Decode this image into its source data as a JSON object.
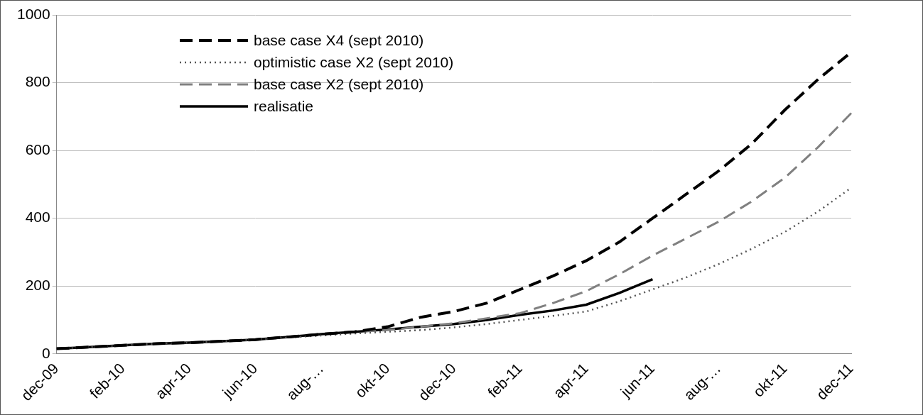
{
  "chart_data": {
    "type": "line",
    "categories": [
      "dec-09",
      null,
      "feb-10",
      null,
      "apr-10",
      null,
      "jun-10",
      null,
      "aug-…",
      null,
      "okt-10",
      null,
      "dec-10",
      null,
      "feb-11",
      null,
      "apr-11",
      null,
      "jun-11",
      null,
      "aug-…",
      null,
      "okt-11",
      null,
      "dec-11"
    ],
    "series": [
      {
        "name": "base case X4 (sept 2010)",
        "color": "#000000",
        "line_style": "dashed",
        "values": [
          15,
          20,
          25,
          30,
          33,
          37,
          42,
          50,
          58,
          65,
          80,
          108,
          125,
          150,
          190,
          230,
          275,
          330,
          400,
          470,
          540,
          620,
          720,
          810,
          890
        ]
      },
      {
        "name": "optimistic case X2 (sept 2010)",
        "color": "#555555",
        "line_style": "dotted",
        "values": [
          15,
          20,
          25,
          30,
          33,
          37,
          42,
          48,
          54,
          60,
          65,
          70,
          78,
          88,
          100,
          112,
          125,
          155,
          190,
          225,
          265,
          310,
          360,
          420,
          490
        ]
      },
      {
        "name": "base case X2 (sept 2010)",
        "color": "#808080",
        "line_style": "dashed",
        "values": [
          15,
          20,
          25,
          30,
          33,
          37,
          42,
          50,
          58,
          65,
          70,
          80,
          90,
          105,
          120,
          150,
          185,
          235,
          290,
          340,
          390,
          450,
          520,
          610,
          710
        ]
      },
      {
        "name": "realisatie",
        "color": "#000000",
        "line_style": "solid",
        "values": [
          15,
          20,
          25,
          30,
          33,
          37,
          42,
          50,
          58,
          65,
          72,
          80,
          88,
          100,
          115,
          128,
          145,
          180,
          220,
          null,
          null,
          null,
          null,
          null,
          null
        ]
      }
    ],
    "ylim": [
      0,
      1000
    ],
    "yticks": [
      0,
      200,
      400,
      600,
      800,
      1000
    ],
    "grid": true,
    "legend": "top-left"
  }
}
